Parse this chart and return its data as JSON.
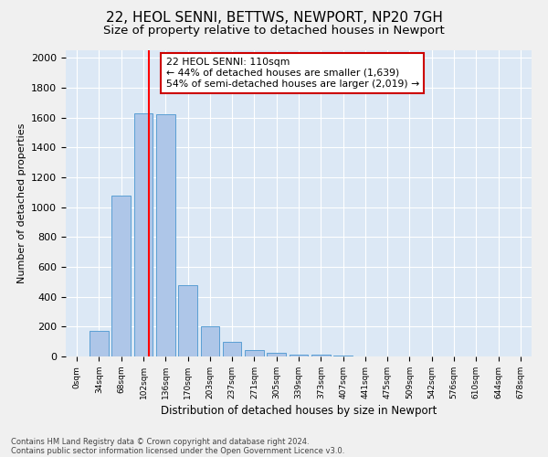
{
  "title1": "22, HEOL SENNI, BETTWS, NEWPORT, NP20 7GH",
  "title2": "Size of property relative to detached houses in Newport",
  "xlabel": "Distribution of detached houses by size in Newport",
  "ylabel": "Number of detached properties",
  "categories": [
    "0sqm",
    "34sqm",
    "68sqm",
    "102sqm",
    "136sqm",
    "170sqm",
    "203sqm",
    "237sqm",
    "271sqm",
    "305sqm",
    "339sqm",
    "373sqm",
    "407sqm",
    "441sqm",
    "475sqm",
    "509sqm",
    "542sqm",
    "576sqm",
    "610sqm",
    "644sqm",
    "678sqm"
  ],
  "values": [
    0,
    170,
    1080,
    1630,
    1620,
    480,
    200,
    100,
    40,
    25,
    15,
    10,
    5,
    0,
    0,
    0,
    0,
    0,
    0,
    0,
    0
  ],
  "bar_color": "#aec6e8",
  "bar_edge_color": "#5a9fd4",
  "annotation_text": "22 HEOL SENNI: 110sqm\n← 44% of detached houses are smaller (1,639)\n54% of semi-detached houses are larger (2,019) →",
  "annotation_box_color": "#ffffff",
  "annotation_box_edge": "#cc0000",
  "background_color": "#dce8f5",
  "grid_color": "#ffffff",
  "footer1": "Contains HM Land Registry data © Crown copyright and database right 2024.",
  "footer2": "Contains public sector information licensed under the Open Government Licence v3.0.",
  "ylim": [
    0,
    2050
  ],
  "title1_fontsize": 11,
  "title2_fontsize": 9.5,
  "fig_bg": "#f0f0f0"
}
